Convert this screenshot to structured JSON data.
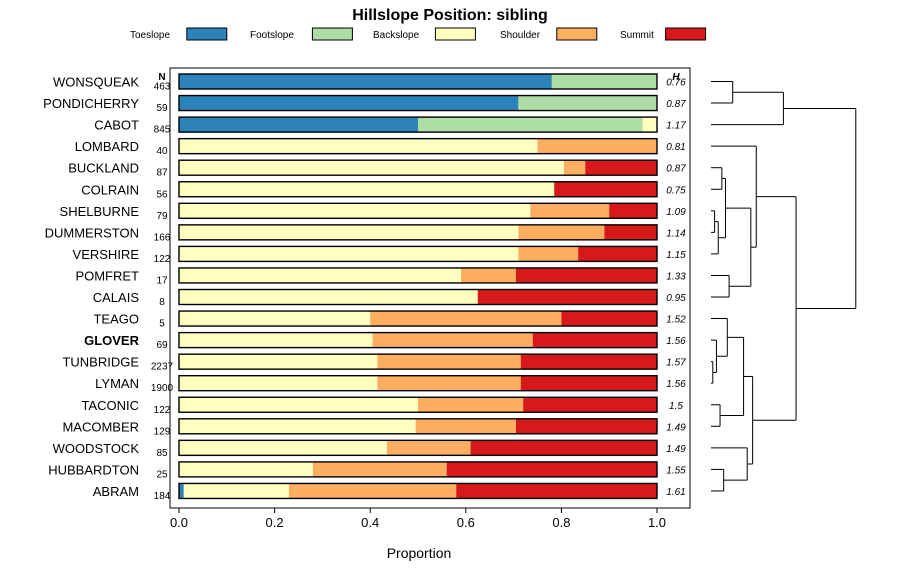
{
  "chart_data": {
    "type": "bar",
    "orientation": "horizontal",
    "stacked": true,
    "title": "Hillslope Position: sibling",
    "xlabel": "Proportion",
    "ylabel": "",
    "xlim": [
      0,
      1
    ],
    "x_ticks": [
      "0.0",
      "0.2",
      "0.4",
      "0.6",
      "0.8",
      "1.0"
    ],
    "legend_position": "top",
    "series": [
      {
        "name": "Toeslope",
        "color": "#2b83ba"
      },
      {
        "name": "Footslope",
        "color": "#abdda4"
      },
      {
        "name": "Backslope",
        "color": "#ffffbf"
      },
      {
        "name": "Shoulder",
        "color": "#fdae61"
      },
      {
        "name": "Summit",
        "color": "#d7191c"
      }
    ],
    "n_header": "N",
    "h_header": "H",
    "highlight": "GLOVER",
    "rows": [
      {
        "name": "WONSQUEAK",
        "n": "463",
        "h": "0.76",
        "values": [
          0.78,
          0.22,
          0,
          0,
          0
        ]
      },
      {
        "name": "PONDICHERRY",
        "n": "59",
        "h": "0.87",
        "values": [
          0.71,
          0.29,
          0,
          0,
          0
        ]
      },
      {
        "name": "CABOT",
        "n": "845",
        "h": "1.17",
        "values": [
          0.5,
          0.47,
          0.03,
          0,
          0
        ]
      },
      {
        "name": "LOMBARD",
        "n": "40",
        "h": "0.81",
        "values": [
          0,
          0,
          0.75,
          0.25,
          0
        ]
      },
      {
        "name": "BUCKLAND",
        "n": "87",
        "h": "0.87",
        "values": [
          0,
          0,
          0.805,
          0.045,
          0.15
        ]
      },
      {
        "name": "COLRAIN",
        "n": "56",
        "h": "0.75",
        "values": [
          0,
          0,
          0.785,
          0,
          0.215
        ]
      },
      {
        "name": "SHELBURNE",
        "n": "79",
        "h": "1.09",
        "values": [
          0,
          0,
          0.735,
          0.165,
          0.1
        ]
      },
      {
        "name": "DUMMERSTON",
        "n": "166",
        "h": "1.14",
        "values": [
          0,
          0,
          0.71,
          0.18,
          0.11
        ]
      },
      {
        "name": "VERSHIRE",
        "n": "122",
        "h": "1.15",
        "values": [
          0,
          0,
          0.71,
          0.125,
          0.165
        ]
      },
      {
        "name": "POMFRET",
        "n": "17",
        "h": "1.33",
        "values": [
          0,
          0,
          0.59,
          0.115,
          0.295
        ]
      },
      {
        "name": "CALAIS",
        "n": "8",
        "h": "0.95",
        "values": [
          0,
          0,
          0.625,
          0,
          0.375
        ]
      },
      {
        "name": "TEAGO",
        "n": "5",
        "h": "1.52",
        "values": [
          0,
          0,
          0.4,
          0.4,
          0.2
        ]
      },
      {
        "name": "GLOVER",
        "n": "69",
        "h": "1.56",
        "values": [
          0,
          0,
          0.405,
          0.335,
          0.26
        ]
      },
      {
        "name": "TUNBRIDGE",
        "n": "2237",
        "h": "1.57",
        "values": [
          0,
          0,
          0.415,
          0.3,
          0.285
        ]
      },
      {
        "name": "LYMAN",
        "n": "1900",
        "h": "1.56",
        "values": [
          0,
          0,
          0.415,
          0.3,
          0.285
        ]
      },
      {
        "name": "TACONIC",
        "n": "122",
        "h": "1.5",
        "values": [
          0,
          0,
          0.5,
          0.22,
          0.28
        ]
      },
      {
        "name": "MACOMBER",
        "n": "129",
        "h": "1.49",
        "values": [
          0,
          0,
          0.495,
          0.21,
          0.295
        ]
      },
      {
        "name": "WOODSTOCK",
        "n": "85",
        "h": "1.49",
        "values": [
          0,
          0,
          0.435,
          0.175,
          0.39
        ]
      },
      {
        "name": "HUBBARDTON",
        "n": "25",
        "h": "1.55",
        "values": [
          0,
          0,
          0.28,
          0.28,
          0.44
        ]
      },
      {
        "name": "ABRAM",
        "n": "184",
        "h": "1.61",
        "values": [
          0.01,
          0,
          0.22,
          0.35,
          0.42
        ]
      }
    ],
    "dendrogram": {
      "type": "hierarchical-clustering",
      "merges": [
        [
          -1,
          -2,
          0.12
        ],
        [
          1,
          -3,
          0.4
        ],
        [
          -7,
          -8,
          0.02
        ],
        [
          3,
          -9,
          0.04
        ],
        [
          -5,
          -6,
          0.06
        ],
        [
          5,
          4,
          0.08
        ],
        [
          -10,
          -11,
          0.1
        ],
        [
          6,
          7,
          0.22
        ],
        [
          -4,
          8,
          0.25
        ],
        [
          -14,
          -15,
          0.01
        ],
        [
          -13,
          10,
          0.03
        ],
        [
          -16,
          -17,
          0.05
        ],
        [
          -12,
          11,
          0.09
        ],
        [
          13,
          12,
          0.18
        ],
        [
          -19,
          -20,
          0.07
        ],
        [
          -18,
          15,
          0.2
        ],
        [
          14,
          16,
          0.23
        ],
        [
          9,
          17,
          0.47
        ],
        [
          2,
          18,
          0.8
        ]
      ]
    }
  }
}
